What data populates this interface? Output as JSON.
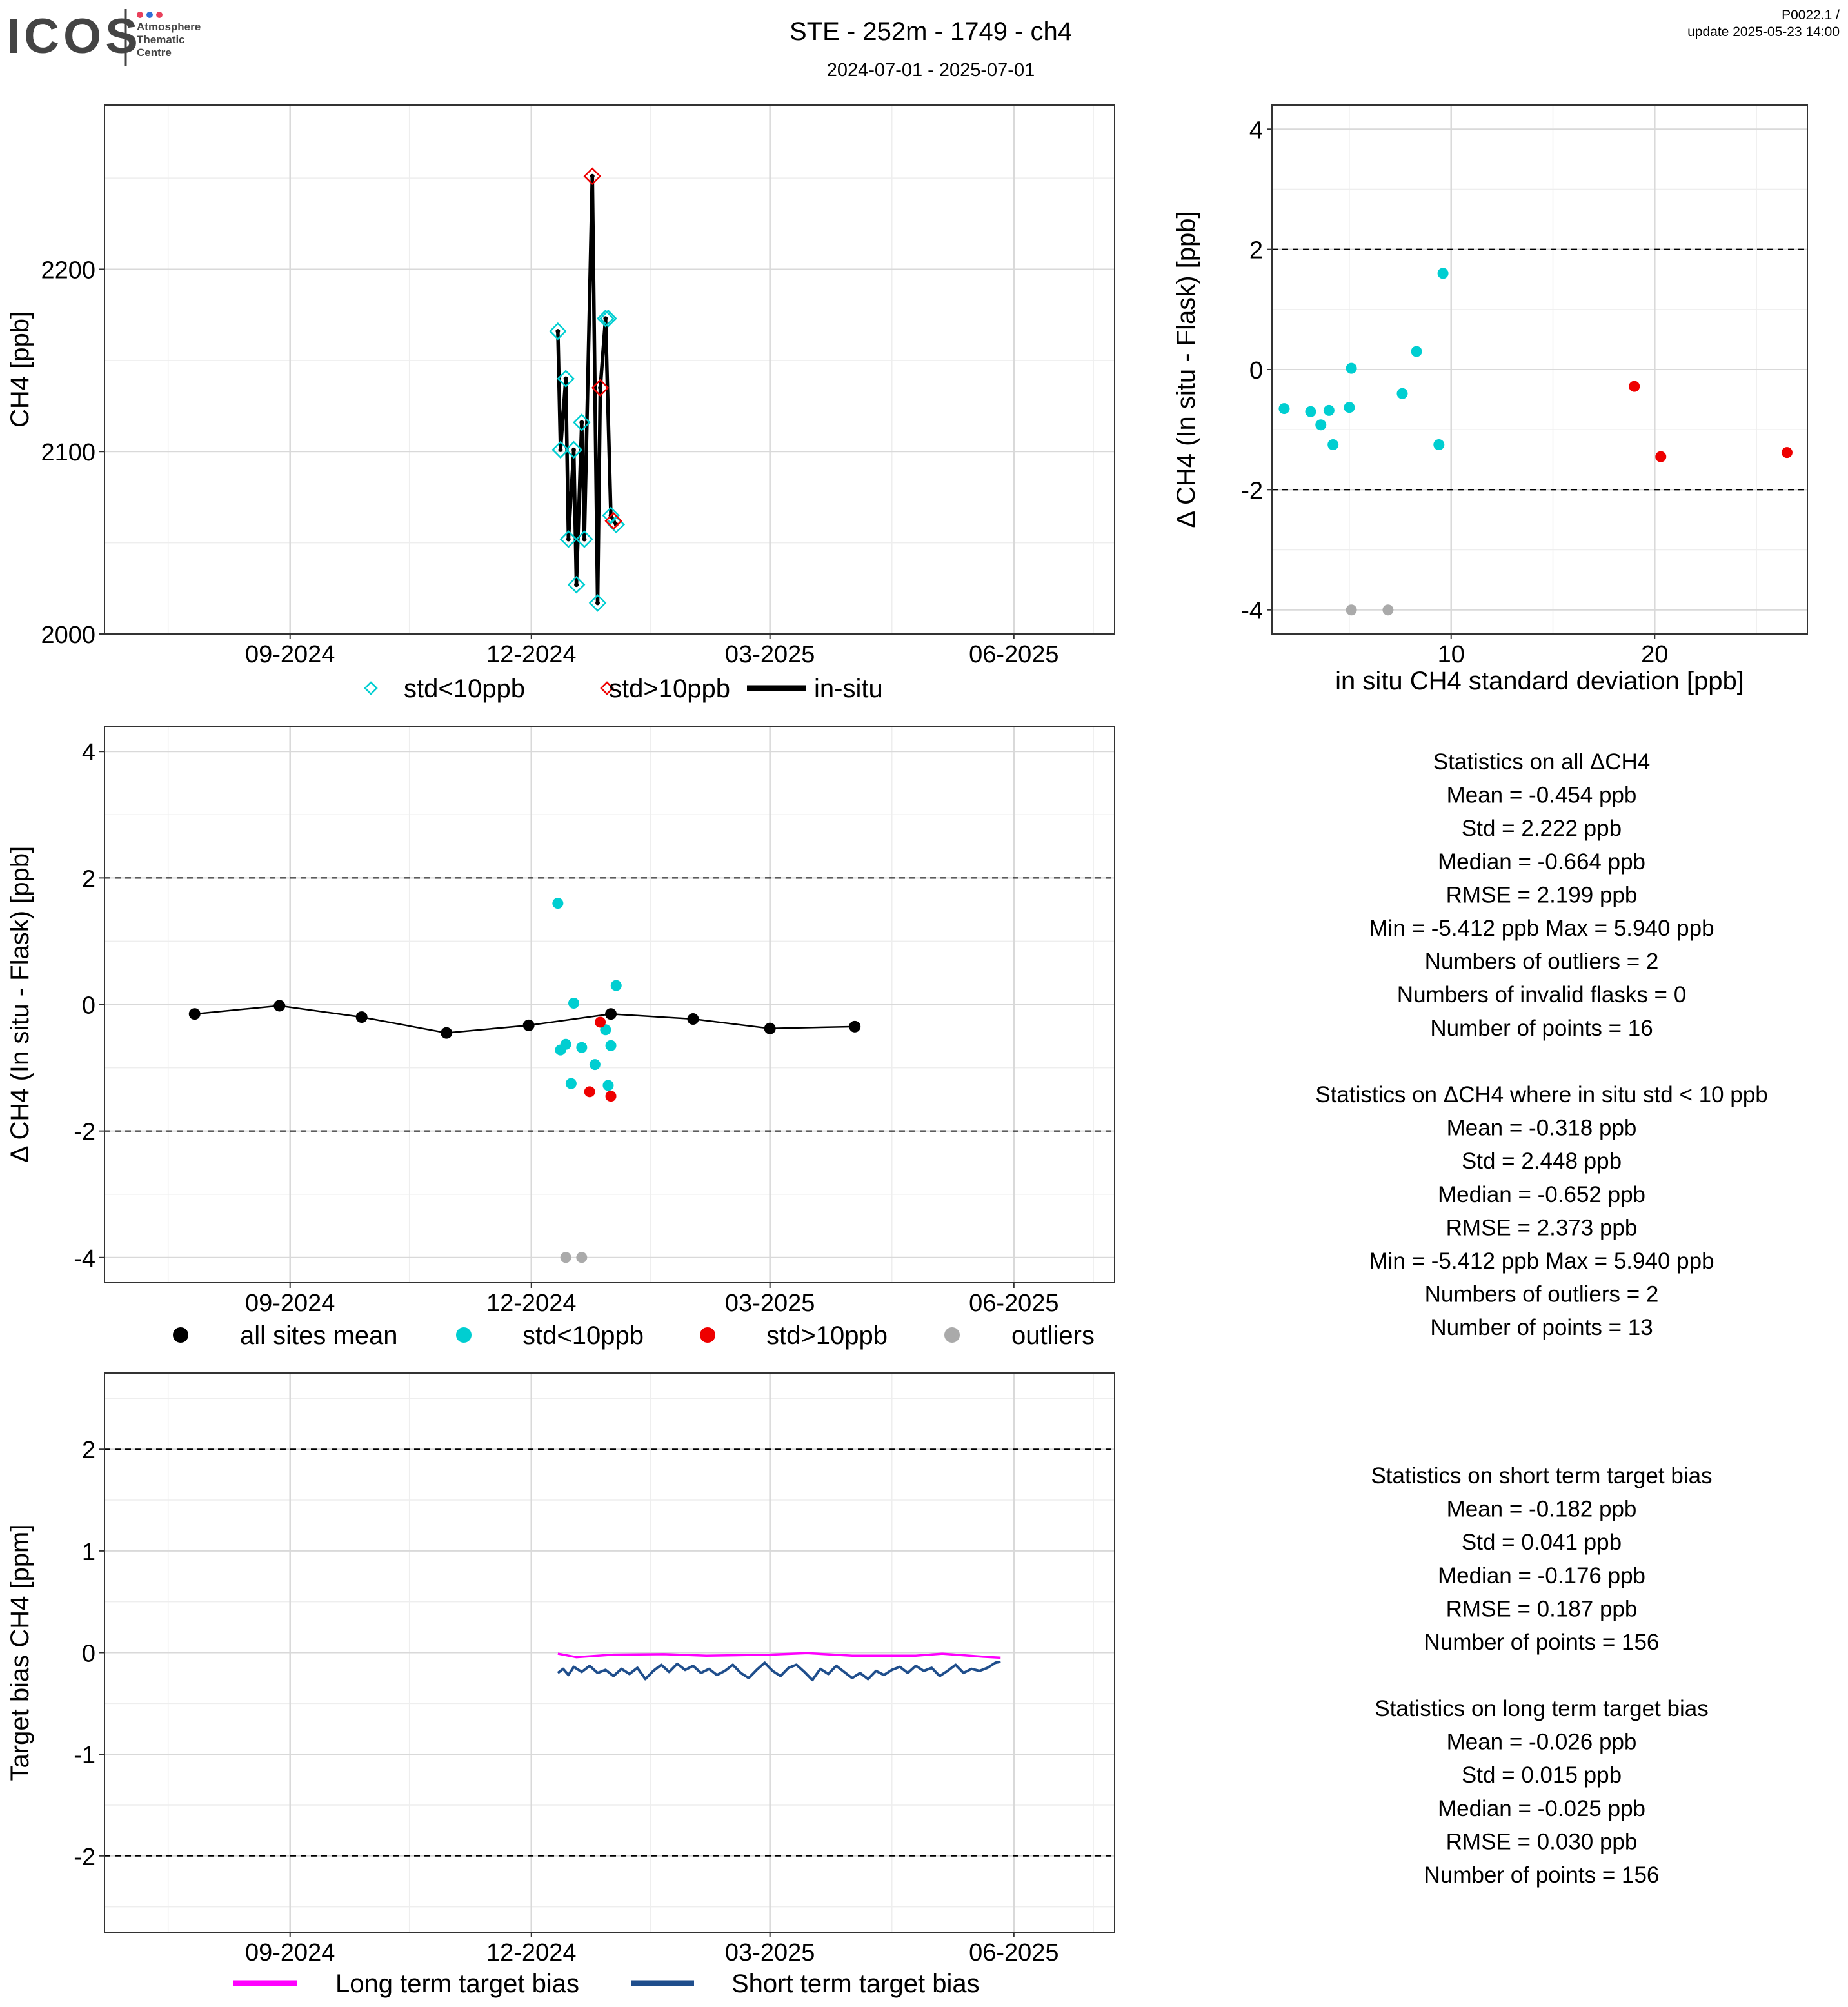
{
  "header": {
    "logo_text": "ICOS",
    "logo_sub": [
      "Atmosphere",
      "Thematic",
      "Centre"
    ],
    "title": "STE - 252m - 1749 - ch4",
    "subtitle": "2024-07-01 - 2025-07-01",
    "version": "P0022.1 /",
    "update": "update  2025-05-23 14:00"
  },
  "colors": {
    "cyan": "#00CED1",
    "red": "#EE0000",
    "grey": "#AAAAAA",
    "black": "#000000",
    "magenta": "#FF00FF",
    "navy": "#1F4E8C",
    "grid_major": "#D9D9D9",
    "grid_minor": "#EEEEEE"
  },
  "chart_data": [
    {
      "id": "ts",
      "type": "line",
      "xlabel": "",
      "ylabel": "CH4 [ppb]",
      "xlim": [
        "2024-06-23",
        "2025-07-09"
      ],
      "ylim": [
        2000,
        2290
      ],
      "x_ticks": [
        {
          "date": "2024-09-01",
          "label": "09-2024"
        },
        {
          "date": "2024-12-01",
          "label": "12-2024"
        },
        {
          "date": "2025-03-01",
          "label": "03-2025"
        },
        {
          "date": "2025-06-01",
          "label": "06-2025"
        }
      ],
      "y_ticks": [
        2000,
        2100,
        2200
      ],
      "legend": [
        "std<10ppb",
        "std>10ppb",
        "in-situ"
      ],
      "series": [
        {
          "name": "in-situ",
          "points": [
            [
              "2024-12-11",
              2166
            ],
            [
              "2024-12-12",
              2101
            ],
            [
              "2024-12-14",
              2140
            ],
            [
              "2024-12-15",
              2052
            ],
            [
              "2024-12-17",
              2101
            ],
            [
              "2024-12-18",
              2027
            ],
            [
              "2024-12-20",
              2116
            ],
            [
              "2024-12-21",
              2052
            ],
            [
              "2024-12-24",
              2251
            ],
            [
              "2024-12-26",
              2017
            ],
            [
              "2024-12-27",
              2135
            ],
            [
              "2024-12-29",
              2173
            ],
            [
              "2024-12-31",
              2065
            ],
            [
              "2025-01-01",
              2062
            ],
            [
              "2025-01-02",
              2060
            ]
          ]
        },
        {
          "name": "std<10ppb",
          "points": [
            [
              "2024-12-11",
              2166
            ],
            [
              "2024-12-12",
              2101
            ],
            [
              "2024-12-14",
              2140
            ],
            [
              "2024-12-15",
              2052
            ],
            [
              "2024-12-17",
              2101
            ],
            [
              "2024-12-18",
              2027
            ],
            [
              "2024-12-20",
              2116
            ],
            [
              "2024-12-21",
              2052
            ],
            [
              "2024-12-26",
              2017
            ],
            [
              "2024-12-29",
              2173
            ],
            [
              "2024-12-30",
              2173
            ],
            [
              "2024-12-31",
              2065
            ],
            [
              "2025-01-02",
              2060
            ]
          ]
        },
        {
          "name": "std>10ppb",
          "points": [
            [
              "2024-12-24",
              2251
            ],
            [
              "2024-12-27",
              2135
            ],
            [
              "2025-01-01",
              2062
            ]
          ]
        }
      ]
    },
    {
      "id": "scatter",
      "type": "scatter",
      "xlabel": "in situ CH4 standard deviation [ppb]",
      "ylabel": "Δ CH4 (In situ - Flask) [ppb]",
      "xlim": [
        1.2,
        27.5
      ],
      "ylim": [
        -4.4,
        4.4
      ],
      "x_ticks": [
        10,
        20
      ],
      "y_ticks": [
        -4,
        -2,
        0,
        2,
        4
      ],
      "hlines": [
        -2,
        2
      ],
      "series": [
        {
          "name": "std<10ppb",
          "points": [
            [
              1.8,
              -0.65
            ],
            [
              3.1,
              -0.7
            ],
            [
              3.6,
              -0.92
            ],
            [
              4.0,
              -0.68
            ],
            [
              4.2,
              -1.25
            ],
            [
              5.0,
              -0.63
            ],
            [
              5.1,
              0.02
            ],
            [
              7.6,
              -0.4
            ],
            [
              8.3,
              0.3
            ],
            [
              9.4,
              -1.25
            ],
            [
              9.6,
              1.6
            ]
          ]
        },
        {
          "name": "std>10ppb",
          "points": [
            [
              19.0,
              -0.28
            ],
            [
              20.3,
              -1.45
            ],
            [
              26.5,
              -1.38
            ]
          ]
        },
        {
          "name": "outliers",
          "points": [
            [
              5.1,
              -4.0
            ],
            [
              6.9,
              -4.0
            ]
          ]
        }
      ]
    },
    {
      "id": "delta",
      "type": "scatter",
      "xlabel": "",
      "ylabel": "Δ CH4 (In situ - Flask) [ppb]",
      "xlim": [
        "2024-06-23",
        "2025-07-09"
      ],
      "ylim": [
        -4.4,
        4.4
      ],
      "x_ticks": [
        {
          "date": "2024-09-01",
          "label": "09-2024"
        },
        {
          "date": "2024-12-01",
          "label": "12-2024"
        },
        {
          "date": "2025-03-01",
          "label": "03-2025"
        },
        {
          "date": "2025-06-01",
          "label": "06-2025"
        }
      ],
      "y_ticks": [
        -4,
        -2,
        0,
        2,
        4
      ],
      "hlines": [
        -2,
        2
      ],
      "legend": [
        "all sites mean",
        "std<10ppb",
        "std>10ppb",
        "outliers"
      ],
      "series": [
        {
          "name": "all sites mean",
          "points": [
            [
              "2024-07-27",
              -0.15
            ],
            [
              "2024-08-28",
              -0.02
            ],
            [
              "2024-09-28",
              -0.2
            ],
            [
              "2024-10-30",
              -0.45
            ],
            [
              "2024-11-30",
              -0.33
            ],
            [
              "2024-12-31",
              -0.15
            ],
            [
              "2025-01-31",
              -0.23
            ],
            [
              "2025-03-01",
              -0.38
            ],
            [
              "2025-04-02",
              -0.35
            ]
          ]
        },
        {
          "name": "std<10ppb",
          "points": [
            [
              "2024-12-11",
              1.6
            ],
            [
              "2024-12-12",
              -0.72
            ],
            [
              "2024-12-14",
              -0.63
            ],
            [
              "2024-12-16",
              -1.25
            ],
            [
              "2024-12-17",
              0.02
            ],
            [
              "2024-12-20",
              -0.68
            ],
            [
              "2024-12-25",
              -0.95
            ],
            [
              "2024-12-29",
              -0.4
            ],
            [
              "2024-12-30",
              -1.28
            ],
            [
              "2024-12-31",
              -0.65
            ],
            [
              "2025-01-02",
              0.3
            ]
          ]
        },
        {
          "name": "std>10ppb",
          "points": [
            [
              "2024-12-23",
              -1.38
            ],
            [
              "2024-12-27",
              -0.28
            ],
            [
              "2024-12-31",
              -1.45
            ]
          ]
        },
        {
          "name": "outliers",
          "points": [
            [
              "2024-12-14",
              -4.0
            ],
            [
              "2024-12-20",
              -4.0
            ]
          ]
        }
      ]
    },
    {
      "id": "bias",
      "type": "line",
      "xlabel": "",
      "ylabel": "Target bias CH4 [ppm]",
      "xlim": [
        "2024-06-23",
        "2025-07-09"
      ],
      "ylim": [
        -2.75,
        2.75
      ],
      "x_ticks": [
        {
          "date": "2024-09-01",
          "label": "09-2024"
        },
        {
          "date": "2024-12-01",
          "label": "12-2024"
        },
        {
          "date": "2025-03-01",
          "label": "03-2025"
        },
        {
          "date": "2025-06-01",
          "label": "06-2025"
        }
      ],
      "y_ticks": [
        -2,
        -1,
        0,
        1,
        2
      ],
      "hlines": [
        -2,
        2
      ],
      "legend": [
        "Long term target bias",
        "Short term target bias"
      ],
      "series": [
        {
          "name": "Long term target bias",
          "points": [
            [
              "2024-12-11",
              -0.01
            ],
            [
              "2024-12-18",
              -0.045
            ],
            [
              "2025-01-01",
              -0.02
            ],
            [
              "2025-01-20",
              -0.015
            ],
            [
              "2025-02-05",
              -0.03
            ],
            [
              "2025-03-01",
              -0.02
            ],
            [
              "2025-03-15",
              -0.005
            ],
            [
              "2025-04-01",
              -0.03
            ],
            [
              "2025-04-25",
              -0.03
            ],
            [
              "2025-05-05",
              -0.01
            ],
            [
              "2025-05-20",
              -0.04
            ],
            [
              "2025-05-27",
              -0.05
            ]
          ]
        },
        {
          "name": "Short term target bias",
          "points": [
            [
              "2024-12-11",
              -0.2
            ],
            [
              "2024-12-13",
              -0.16
            ],
            [
              "2024-12-15",
              -0.22
            ],
            [
              "2024-12-17",
              -0.14
            ],
            [
              "2024-12-20",
              -0.19
            ],
            [
              "2024-12-23",
              -0.13
            ],
            [
              "2024-12-26",
              -0.2
            ],
            [
              "2024-12-29",
              -0.17
            ],
            [
              "2025-01-01",
              -0.23
            ],
            [
              "2025-01-04",
              -0.16
            ],
            [
              "2025-01-07",
              -0.21
            ],
            [
              "2025-01-10",
              -0.15
            ],
            [
              "2025-01-13",
              -0.26
            ],
            [
              "2025-01-16",
              -0.18
            ],
            [
              "2025-01-19",
              -0.12
            ],
            [
              "2025-01-22",
              -0.19
            ],
            [
              "2025-01-25",
              -0.11
            ],
            [
              "2025-01-28",
              -0.17
            ],
            [
              "2025-01-31",
              -0.13
            ],
            [
              "2025-02-03",
              -0.2
            ],
            [
              "2025-02-06",
              -0.16
            ],
            [
              "2025-02-09",
              -0.22
            ],
            [
              "2025-02-12",
              -0.18
            ],
            [
              "2025-02-15",
              -0.12
            ],
            [
              "2025-02-18",
              -0.2
            ],
            [
              "2025-02-21",
              -0.25
            ],
            [
              "2025-02-24",
              -0.17
            ],
            [
              "2025-02-27",
              -0.1
            ],
            [
              "2025-03-02",
              -0.18
            ],
            [
              "2025-03-05",
              -0.23
            ],
            [
              "2025-03-08",
              -0.15
            ],
            [
              "2025-03-11",
              -0.12
            ],
            [
              "2025-03-14",
              -0.19
            ],
            [
              "2025-03-17",
              -0.27
            ],
            [
              "2025-03-20",
              -0.16
            ],
            [
              "2025-03-23",
              -0.21
            ],
            [
              "2025-03-26",
              -0.13
            ],
            [
              "2025-03-29",
              -0.19
            ],
            [
              "2025-04-01",
              -0.25
            ],
            [
              "2025-04-04",
              -0.2
            ],
            [
              "2025-04-07",
              -0.26
            ],
            [
              "2025-04-10",
              -0.18
            ],
            [
              "2025-04-13",
              -0.22
            ],
            [
              "2025-04-16",
              -0.17
            ],
            [
              "2025-04-19",
              -0.14
            ],
            [
              "2025-04-22",
              -0.2
            ],
            [
              "2025-04-25",
              -0.13
            ],
            [
              "2025-04-28",
              -0.18
            ],
            [
              "2025-05-01",
              -0.15
            ],
            [
              "2025-05-04",
              -0.23
            ],
            [
              "2025-05-07",
              -0.18
            ],
            [
              "2025-05-10",
              -0.12
            ],
            [
              "2025-05-13",
              -0.2
            ],
            [
              "2025-05-16",
              -0.16
            ],
            [
              "2025-05-19",
              -0.18
            ],
            [
              "2025-05-22",
              -0.15
            ],
            [
              "2025-05-25",
              -0.1
            ],
            [
              "2025-05-27",
              -0.09
            ]
          ]
        }
      ]
    }
  ],
  "stats": {
    "all": [
      "Statistics on all ΔCH4",
      "Mean =  -0.454 ppb",
      "Std =  2.222 ppb",
      "Median =  -0.664 ppb",
      "RMSE =  2.199 ppb",
      "Min =  -5.412 ppb Max =  5.940 ppb",
      "Numbers of outliers =  2",
      "Numbers of invalid flasks =  0",
      "Number of points =  16"
    ],
    "std10": [
      "Statistics on ΔCH4 where in situ std < 10 ppb",
      "Mean =  -0.318 ppb",
      "Std =  2.448 ppb",
      "Median =  -0.652 ppb",
      "RMSE =  2.373 ppb",
      "Min =  -5.412 ppb Max =  5.940 ppb",
      "Numbers of outliers =  2",
      "Number of points =  13"
    ],
    "short": [
      "Statistics on short term target bias",
      "Mean =  -0.182 ppb",
      "Std =  0.041 ppb",
      "Median =  -0.176 ppb",
      "RMSE =  0.187 ppb",
      "Number of points =  156"
    ],
    "long": [
      "Statistics on long term target bias",
      "Mean =  -0.026 ppb",
      "Std =  0.015 ppb",
      "Median =  -0.025 ppb",
      "RMSE =  0.030 ppb",
      "Number of points =  156"
    ]
  }
}
